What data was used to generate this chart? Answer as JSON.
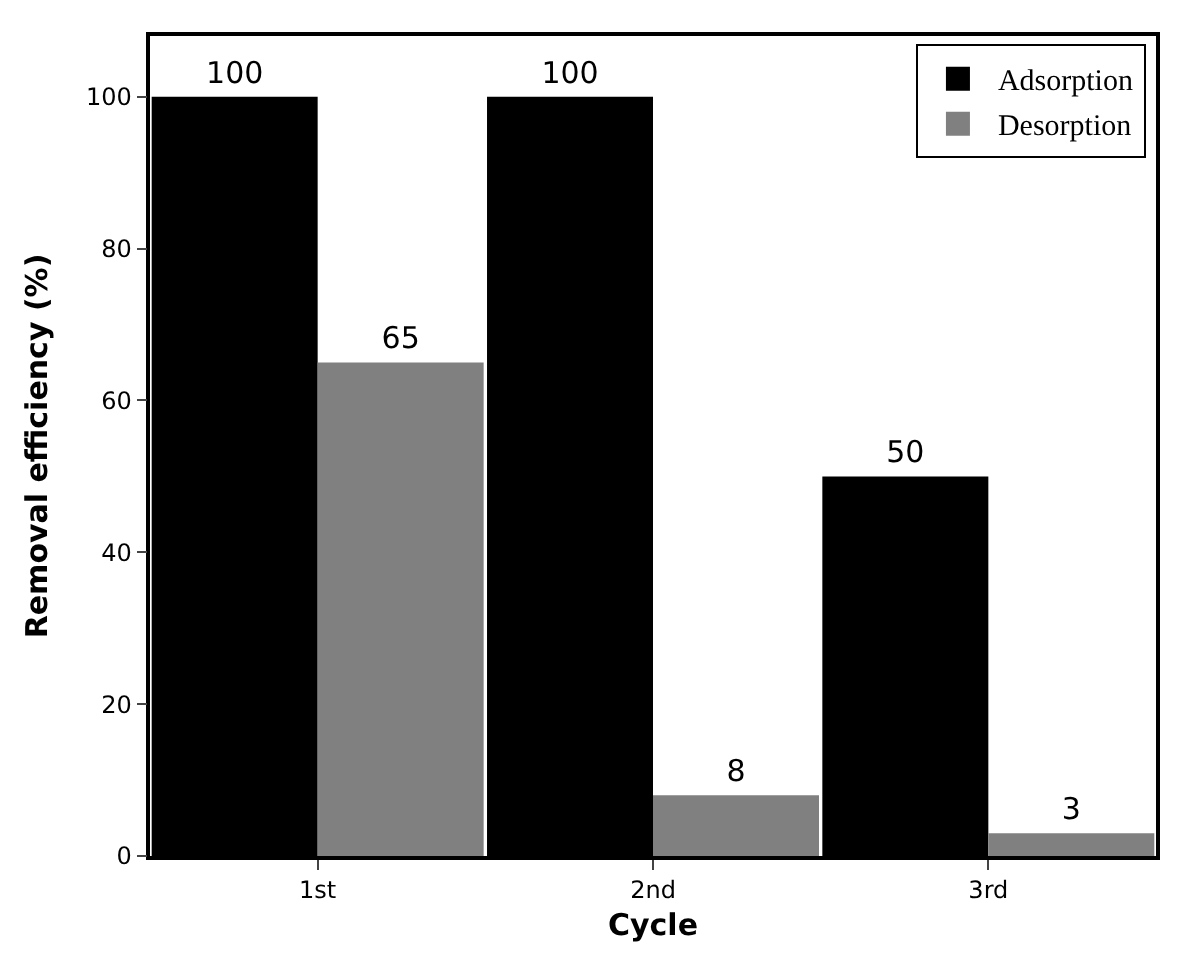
{
  "chart_data": {
    "type": "bar",
    "xlabel": "Cycle",
    "ylabel": "Removal efficiency (%)",
    "categories": [
      "1st",
      "2nd",
      "3rd"
    ],
    "series": [
      {
        "name": "Adsorption",
        "color": "#000000",
        "values": [
          100,
          100,
          50
        ]
      },
      {
        "name": "Desorption",
        "color": "#808080",
        "values": [
          65,
          8,
          3
        ]
      }
    ],
    "ylim": [
      0,
      108
    ],
    "yticks": [
      0,
      20,
      40,
      60,
      80,
      100
    ],
    "data_labels": true,
    "legend": "top right"
  }
}
